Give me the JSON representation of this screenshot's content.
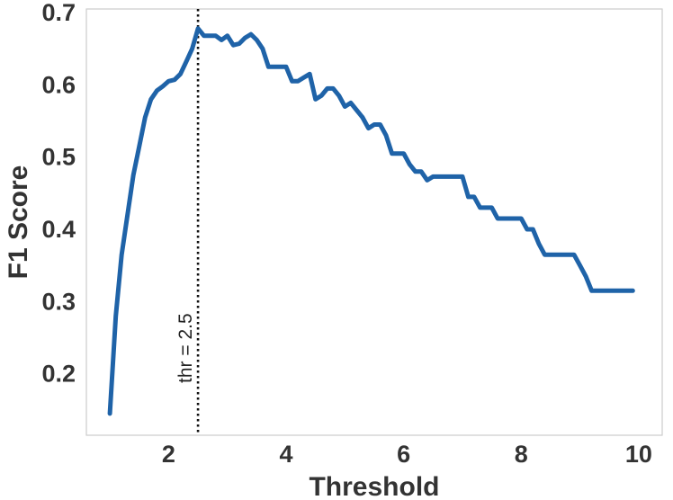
{
  "chart_data": {
    "type": "line",
    "xlabel": "Threshold",
    "ylabel": "F1 Score",
    "xlim": [
      0.6,
      10.4
    ],
    "ylim": [
      0.115,
      0.705
    ],
    "xticks": [
      2,
      4,
      6,
      8,
      10
    ],
    "xtick_labels": [
      "2",
      "4",
      "6",
      "8",
      "10"
    ],
    "yticks": [
      0.2,
      0.3,
      0.4,
      0.5,
      0.6,
      0.7
    ],
    "ytick_labels": [
      "0.2",
      "0.3",
      "0.4",
      "0.5",
      "0.6",
      "0.7"
    ],
    "grid": false,
    "series": [
      {
        "color": "#1f63a8",
        "x": [
          1.0,
          1.1,
          1.2,
          1.3,
          1.4,
          1.5,
          1.6,
          1.7,
          1.8,
          1.9,
          2.0,
          2.1,
          2.2,
          2.3,
          2.4,
          2.5,
          2.6,
          2.7,
          2.8,
          2.9,
          3.0,
          3.1,
          3.2,
          3.3,
          3.4,
          3.5,
          3.6,
          3.7,
          3.8,
          3.9,
          4.0,
          4.1,
          4.2,
          4.3,
          4.4,
          4.5,
          4.6,
          4.7,
          4.8,
          4.9,
          5.0,
          5.1,
          5.2,
          5.3,
          5.4,
          5.5,
          5.6,
          5.7,
          5.8,
          5.9,
          6.0,
          6.1,
          6.2,
          6.3,
          6.4,
          6.5,
          6.6,
          6.7,
          6.8,
          6.9,
          7.0,
          7.1,
          7.2,
          7.3,
          7.4,
          7.5,
          7.6,
          7.7,
          7.8,
          7.9,
          8.0,
          8.1,
          8.2,
          8.3,
          8.4,
          8.5,
          8.6,
          8.7,
          8.8,
          8.9,
          9.0,
          9.1,
          9.2,
          9.3,
          9.4,
          9.5,
          9.6,
          9.7,
          9.8,
          9.9
        ],
        "y": [
          0.145,
          0.28,
          0.365,
          0.42,
          0.475,
          0.515,
          0.555,
          0.58,
          0.592,
          0.598,
          0.605,
          0.607,
          0.615,
          0.632,
          0.65,
          0.678,
          0.668,
          0.668,
          0.668,
          0.662,
          0.668,
          0.655,
          0.657,
          0.665,
          0.67,
          0.662,
          0.65,
          0.625,
          0.625,
          0.625,
          0.625,
          0.605,
          0.605,
          0.61,
          0.615,
          0.58,
          0.585,
          0.595,
          0.595,
          0.585,
          0.57,
          0.575,
          0.565,
          0.555,
          0.54,
          0.545,
          0.545,
          0.53,
          0.505,
          0.505,
          0.505,
          0.49,
          0.48,
          0.48,
          0.468,
          0.473,
          0.473,
          0.473,
          0.473,
          0.473,
          0.473,
          0.445,
          0.445,
          0.43,
          0.43,
          0.43,
          0.415,
          0.415,
          0.415,
          0.415,
          0.415,
          0.4,
          0.4,
          0.38,
          0.365,
          0.365,
          0.365,
          0.365,
          0.365,
          0.365,
          0.35,
          0.335,
          0.315,
          0.315,
          0.315,
          0.315,
          0.315,
          0.315,
          0.315,
          0.315
        ]
      }
    ],
    "annotations": [
      {
        "type": "vline",
        "x": 2.5,
        "style": "dotted",
        "color": "#111111",
        "label": "thr = 2.5"
      }
    ]
  }
}
